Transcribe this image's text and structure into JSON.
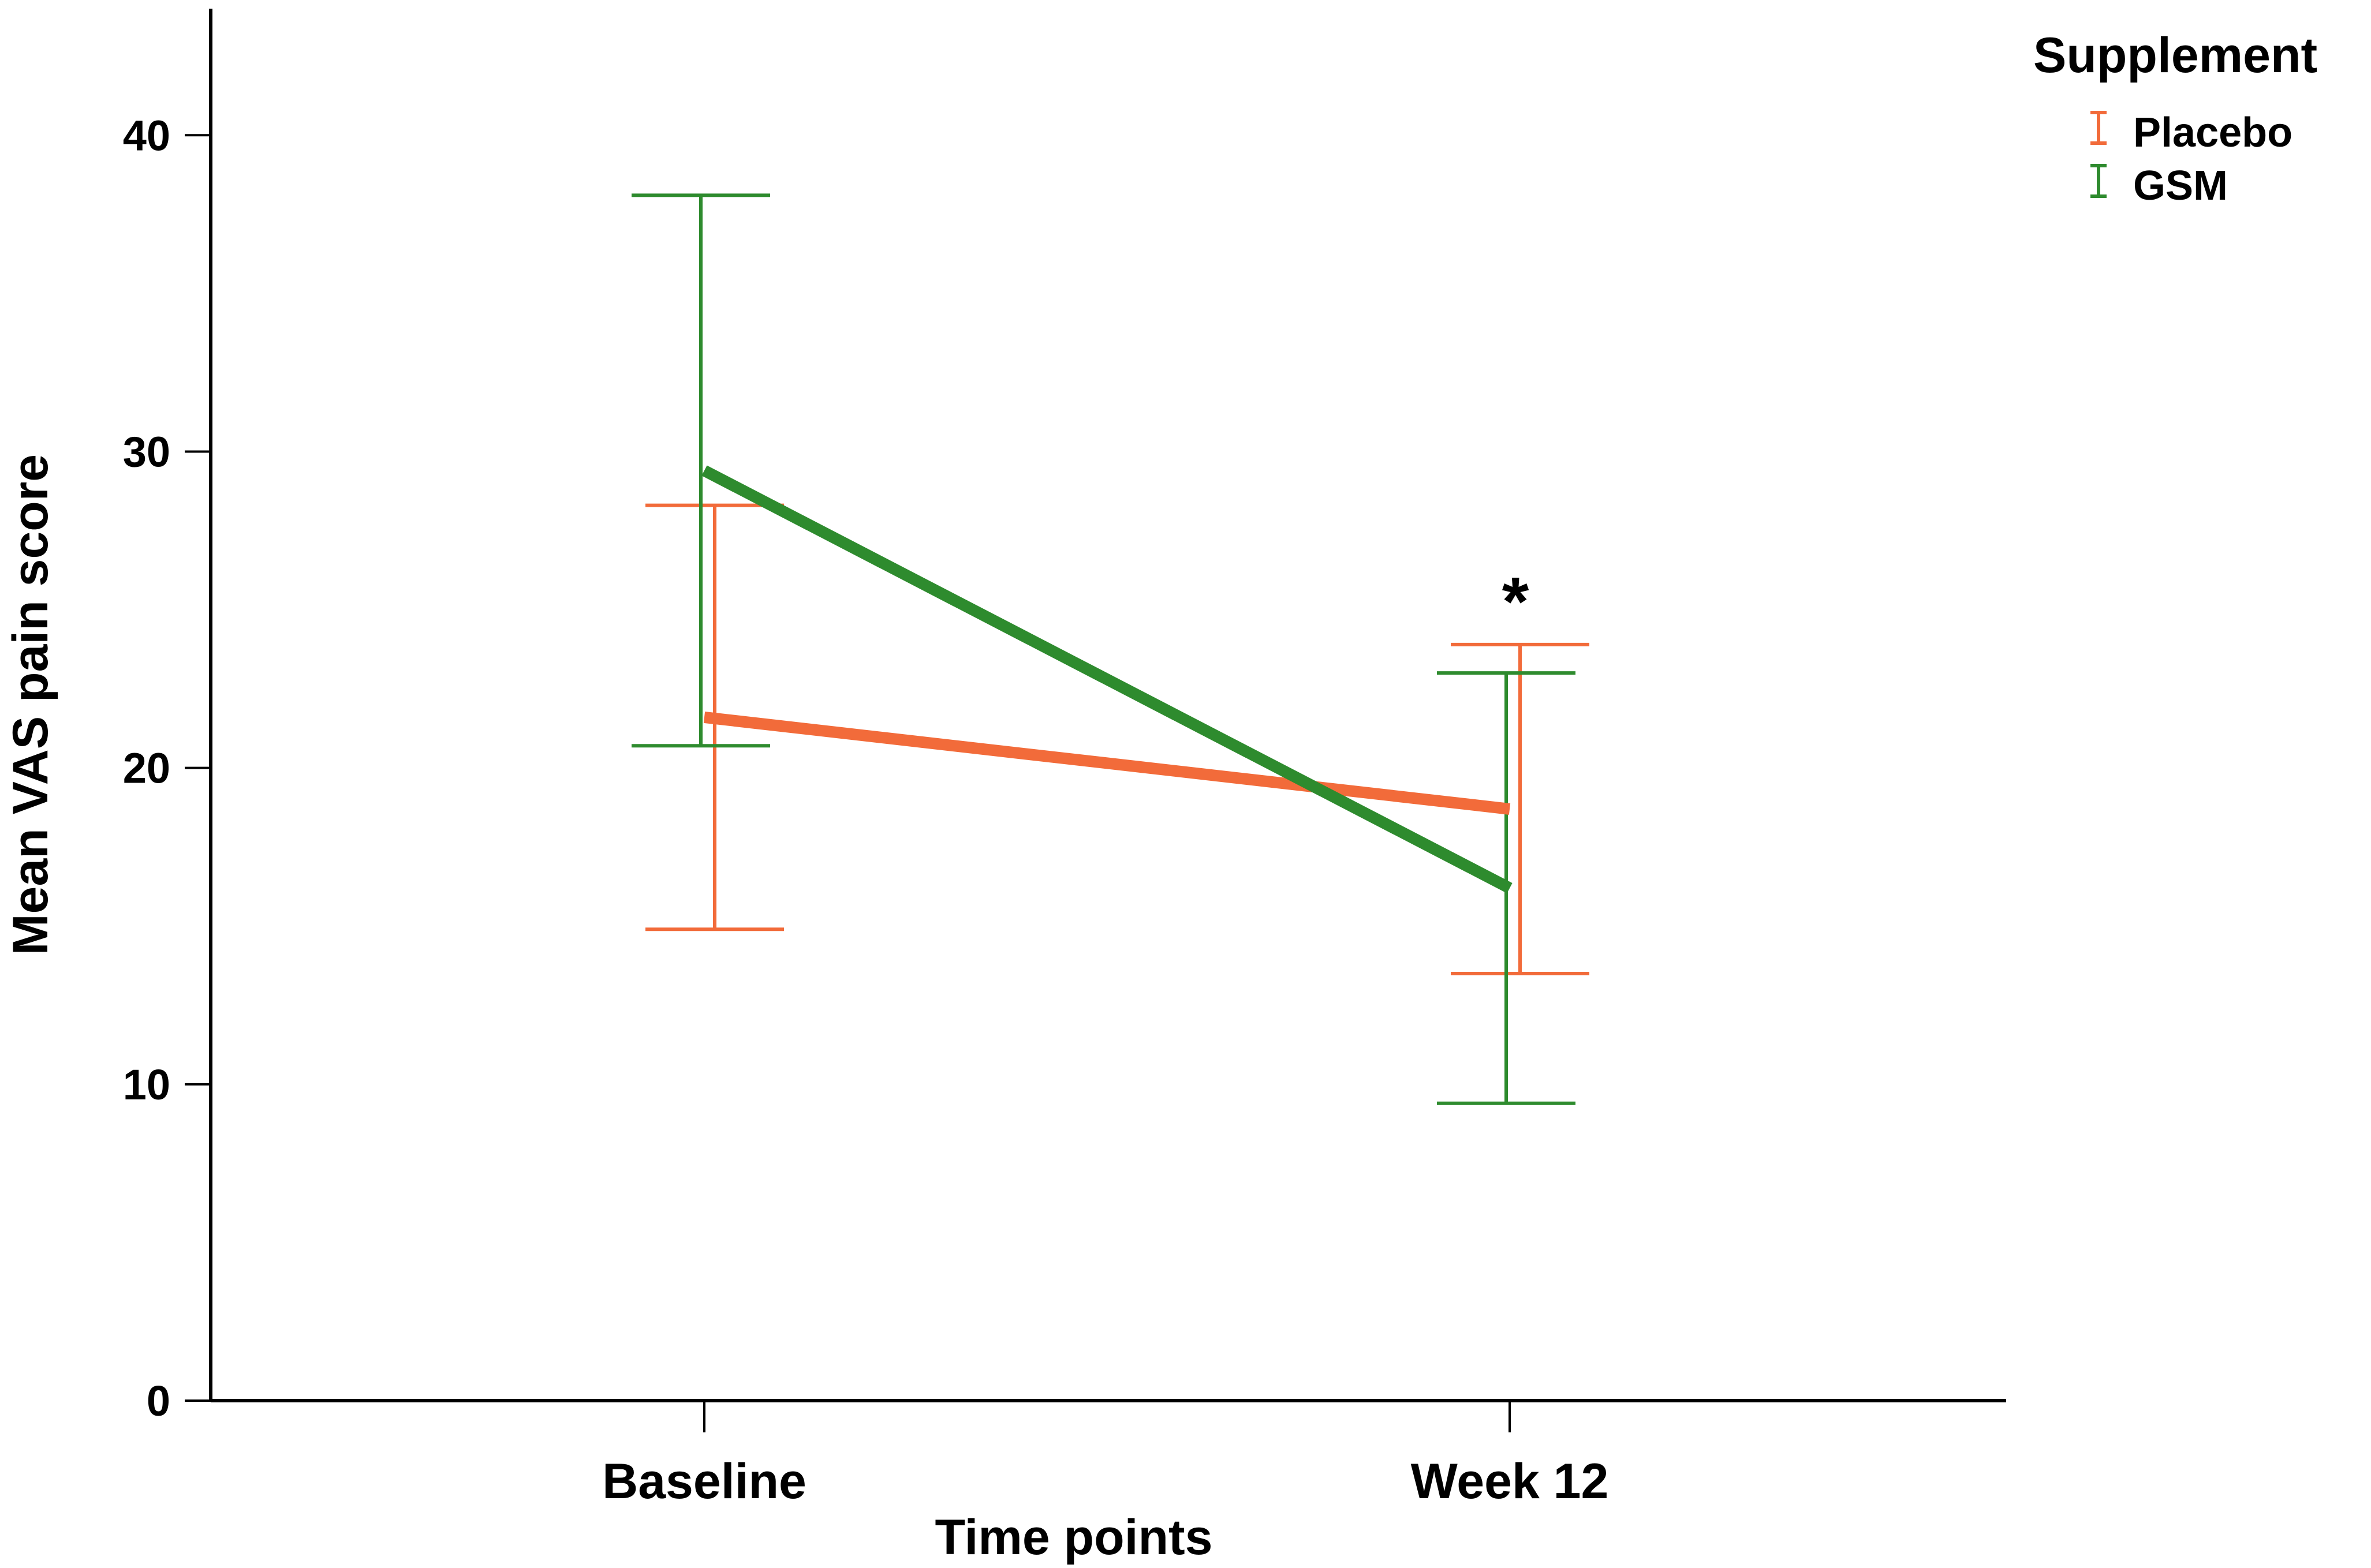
{
  "chart_data": {
    "type": "line",
    "title": "",
    "xlabel": "Time points",
    "ylabel": "Mean VAS pain score",
    "categories": [
      "Baseline",
      "Week 12"
    ],
    "ylim": [
      0,
      44
    ],
    "yticks": [
      0,
      10,
      20,
      30,
      40
    ],
    "grid": false,
    "error_bars": true,
    "series": [
      {
        "name": "Placebo",
        "color": "#f26b3a",
        "values": [
          21.6,
          18.7
        ],
        "err_low": [
          14.9,
          13.5
        ],
        "err_high": [
          28.3,
          23.9
        ]
      },
      {
        "name": "GSM",
        "color": "#2e8b2e",
        "values": [
          29.4,
          16.2
        ],
        "err_low": [
          20.7,
          9.4
        ],
        "err_high": [
          38.1,
          23.0
        ]
      }
    ],
    "legend": {
      "title": "Supplement",
      "placement": "top-right"
    },
    "annotations": [
      {
        "text": "*",
        "category": "Week 12",
        "y": 25.6
      }
    ]
  }
}
